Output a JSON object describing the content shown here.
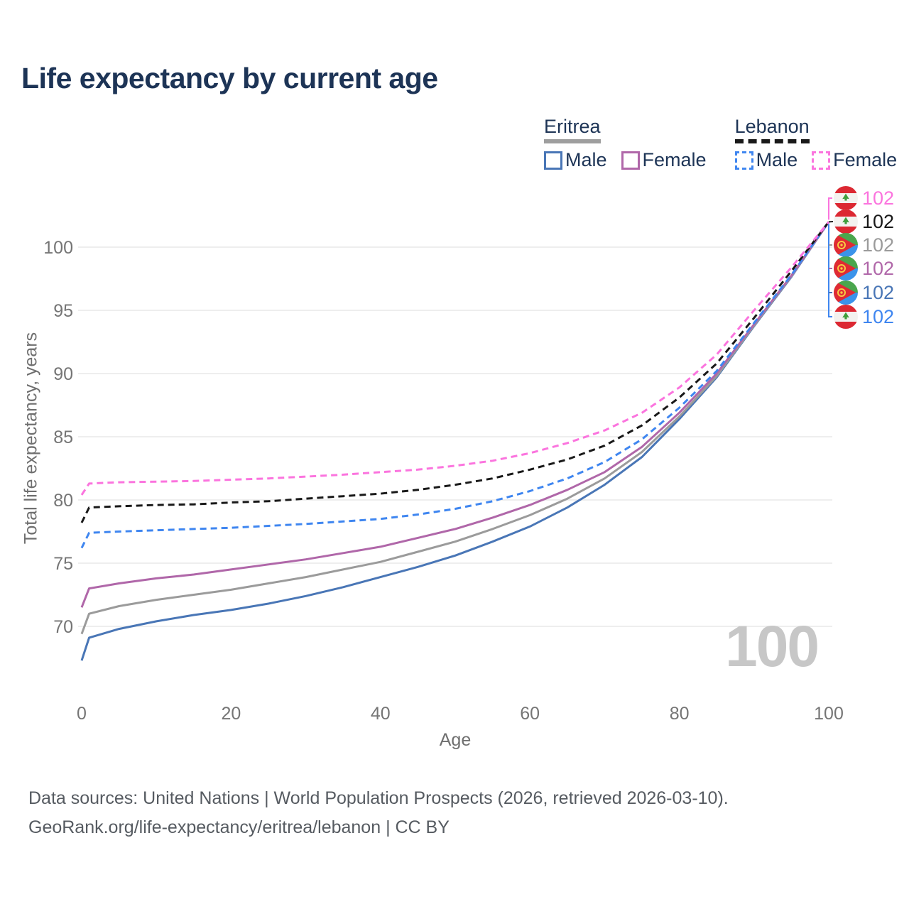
{
  "title": "Life expectancy by current age",
  "legend": {
    "groups": [
      {
        "country": "Eritrea",
        "line_style": "solid",
        "underline_color": "#9e9e9e",
        "items": [
          {
            "label": "Male",
            "color": "#4976b6"
          },
          {
            "label": "Female",
            "color": "#b067a9"
          }
        ]
      },
      {
        "country": "Lebanon",
        "line_style": "dashed",
        "underline_color": "#191919",
        "items": [
          {
            "label": "Male",
            "color": "#3f86f0"
          },
          {
            "label": "Female",
            "color": "#fb74de"
          }
        ]
      }
    ]
  },
  "chart_data": {
    "type": "line",
    "title": "Life expectancy by current age",
    "xlabel": "Age",
    "ylabel": "Total life expectancy, years",
    "xlim": [
      0,
      100
    ],
    "ylim": [
      66,
      103.5
    ],
    "x_ticks": [
      0,
      20,
      40,
      60,
      80,
      100
    ],
    "y_ticks": [
      70,
      75,
      80,
      85,
      90,
      95,
      100
    ],
    "grid": "horizontal",
    "legend_position": "top-right",
    "watermark": "100",
    "x": [
      0,
      1,
      5,
      10,
      15,
      20,
      25,
      30,
      35,
      40,
      45,
      50,
      55,
      60,
      65,
      70,
      75,
      80,
      85,
      90,
      95,
      100
    ],
    "series": [
      {
        "id": "eritrea-male",
        "name": "Male",
        "country": "Eritrea",
        "color": "#4976b6",
        "dashed": false,
        "values": [
          67.3,
          69.1,
          69.8,
          70.4,
          70.9,
          71.3,
          71.8,
          72.4,
          73.1,
          73.9,
          74.7,
          75.6,
          76.7,
          77.9,
          79.4,
          81.2,
          83.4,
          86.4,
          89.7,
          93.75,
          97.65,
          102
        ]
      },
      {
        "id": "eritrea-total",
        "name": "Eritrea",
        "country": "Eritrea",
        "color": "#9b9b9b",
        "dashed": false,
        "values": [
          69.4,
          71.0,
          71.6,
          72.1,
          72.5,
          72.9,
          73.4,
          73.9,
          74.5,
          75.1,
          75.9,
          76.7,
          77.7,
          78.8,
          80.1,
          81.7,
          83.8,
          86.6,
          89.8,
          93.8,
          97.7,
          102
        ]
      },
      {
        "id": "eritrea-female",
        "name": "Female",
        "country": "Eritrea",
        "color": "#b067a9",
        "dashed": false,
        "values": [
          71.5,
          73.0,
          73.4,
          73.8,
          74.1,
          74.5,
          74.9,
          75.3,
          75.8,
          76.3,
          77.0,
          77.7,
          78.6,
          79.6,
          80.8,
          82.2,
          84.2,
          86.9,
          90.0,
          93.9,
          97.75,
          102
        ]
      },
      {
        "id": "lebanon-male",
        "name": "Male",
        "country": "Lebanon",
        "color": "#3f86f0",
        "dashed": true,
        "values": [
          76.2,
          77.4,
          77.5,
          77.6,
          77.7,
          77.8,
          77.95,
          78.1,
          78.3,
          78.5,
          78.85,
          79.3,
          79.9,
          80.7,
          81.7,
          83.0,
          84.8,
          87.3,
          90.2,
          94.0,
          97.8,
          102
        ]
      },
      {
        "id": "lebanon-total",
        "name": "Lebanon",
        "country": "Lebanon",
        "color": "#191919",
        "dashed": true,
        "values": [
          78.2,
          79.4,
          79.5,
          79.6,
          79.65,
          79.8,
          79.9,
          80.1,
          80.3,
          80.5,
          80.8,
          81.2,
          81.7,
          82.4,
          83.2,
          84.3,
          85.9,
          88.1,
          90.8,
          94.4,
          98.1,
          102
        ]
      },
      {
        "id": "lebanon-female",
        "name": "Female",
        "country": "Lebanon",
        "color": "#fb74de",
        "dashed": true,
        "values": [
          80.4,
          81.3,
          81.4,
          81.45,
          81.5,
          81.6,
          81.7,
          81.85,
          82.0,
          82.2,
          82.4,
          82.7,
          83.1,
          83.7,
          84.5,
          85.5,
          86.9,
          88.9,
          91.5,
          95.0,
          98.4,
          102
        ]
      }
    ]
  },
  "end_labels": [
    {
      "flag": "lebanon",
      "series": "lebanon-female",
      "value": "102",
      "color": "#fb74de"
    },
    {
      "flag": "lebanon",
      "series": "lebanon-total",
      "value": "102",
      "color": "#191919"
    },
    {
      "flag": "eritrea",
      "series": "eritrea-total",
      "value": "102",
      "color": "#9b9b9b"
    },
    {
      "flag": "eritrea",
      "series": "eritrea-female",
      "value": "102",
      "color": "#b067a9"
    },
    {
      "flag": "eritrea",
      "series": "eritrea-male",
      "value": "102",
      "color": "#4976b6"
    },
    {
      "flag": "lebanon",
      "series": "lebanon-male",
      "value": "102",
      "color": "#3f86f0"
    }
  ],
  "footer": {
    "line1": "Data sources: United Nations | World Population Prospects (2026, retrieved 2026-03-10).",
    "line2": "GeoRank.org/life-expectancy/eritrea/lebanon | CC BY"
  }
}
